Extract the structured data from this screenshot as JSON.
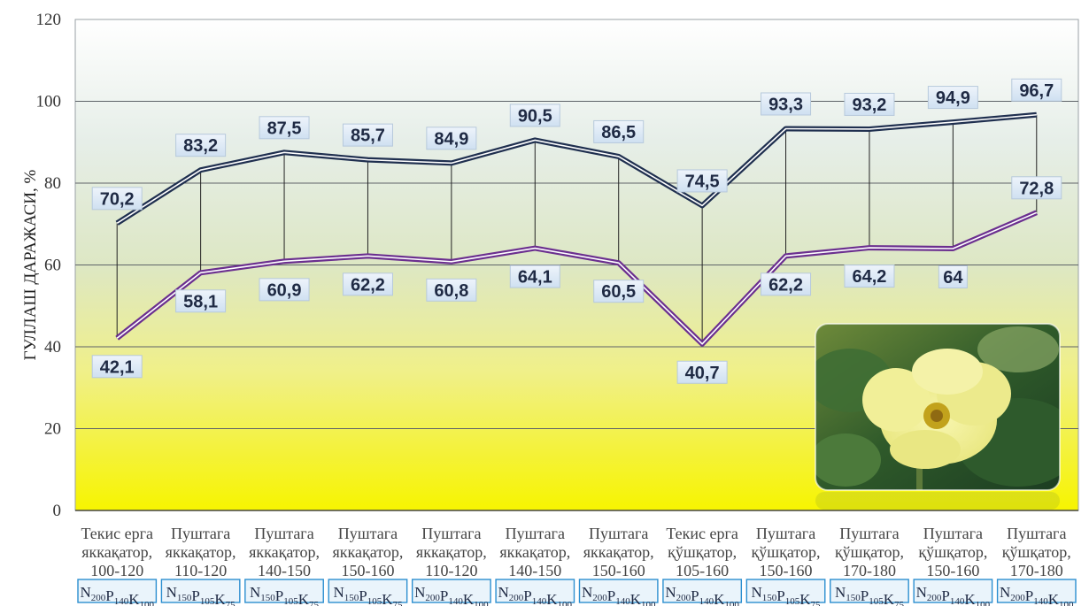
{
  "chart_data": {
    "type": "line",
    "ylabel": "ГУЛЛАШ ДАРАЖАСИ, %",
    "ylim": [
      0,
      120
    ],
    "yticks": [
      0,
      20,
      40,
      60,
      80,
      100,
      120
    ],
    "grid": true,
    "categories": [
      [
        "Текис ерга",
        "яккақатор,",
        "100-120"
      ],
      [
        "Пуштага",
        "яккақатор,",
        "110-120"
      ],
      [
        "Пуштага",
        "яккақатор,",
        "140-150"
      ],
      [
        "Пуштага",
        "яккақатор,",
        "150-160"
      ],
      [
        "Пуштага",
        "яккақатор,",
        "110-120"
      ],
      [
        "Пуштага",
        "яккақатор,",
        "140-150"
      ],
      [
        "Пуштага",
        "яккақатор,",
        "150-160"
      ],
      [
        "Текис ерга",
        "қўшқатор,",
        "105-160"
      ],
      [
        "Пуштага",
        "қўшқатор,",
        "150-160"
      ],
      [
        "Пуштага",
        "қўшқатор,",
        "170-180"
      ],
      [
        "Пуштага",
        "қўшқатор,",
        "150-160"
      ],
      [
        "Пуштага",
        "қўшқатор,",
        "170-180"
      ]
    ],
    "fertilizer": [
      [
        "200",
        "140",
        "100"
      ],
      [
        "150",
        "105",
        "75"
      ],
      [
        "150",
        "105",
        "75"
      ],
      [
        "150",
        "105",
        "75"
      ],
      [
        "200",
        "140",
        "100"
      ],
      [
        "200",
        "140",
        "100"
      ],
      [
        "200",
        "140",
        "100"
      ],
      [
        "200",
        "140",
        "100"
      ],
      [
        "150",
        "105",
        "75"
      ],
      [
        "150",
        "105",
        "75"
      ],
      [
        "200",
        "140",
        "100"
      ],
      [
        "200",
        "140",
        "100"
      ]
    ],
    "series": [
      {
        "color": "#1f2f4f",
        "values": [
          70.2,
          83.2,
          87.5,
          85.7,
          84.9,
          90.5,
          86.5,
          74.5,
          93.3,
          93.2,
          94.9,
          96.7
        ],
        "labels": [
          "70,2",
          "83,2",
          "87,5",
          "85,7",
          "84,9",
          "90,5",
          "86,5",
          "74,5",
          "93,3",
          "93,2",
          "94,9",
          "96,7"
        ]
      },
      {
        "color": "#6b2f8f",
        "values": [
          42.1,
          58.1,
          60.9,
          62.2,
          60.8,
          64.1,
          60.5,
          40.7,
          62.2,
          64.2,
          64,
          72.8
        ],
        "labels": [
          "42,1",
          "58,1",
          "60,9",
          "62,2",
          "60,8",
          "64,1",
          "60,5",
          "40,7",
          "62,2",
          "64,2",
          "64",
          "72,8"
        ]
      }
    ]
  },
  "photo": {
    "icon": "cotton-flower-photo"
  }
}
